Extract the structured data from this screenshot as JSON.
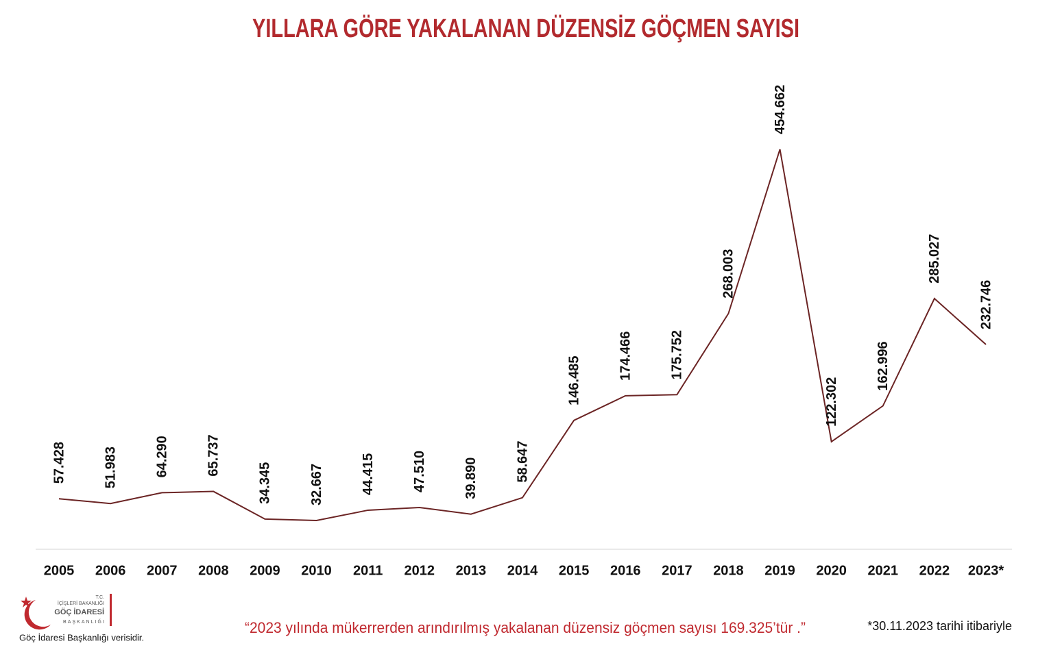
{
  "chart_data": {
    "type": "line",
    "title": "YILLARA GÖRE YAKALANAN DÜZENSİZ GÖÇMEN SAYISI",
    "categories": [
      "2005",
      "2006",
      "2007",
      "2008",
      "2009",
      "2010",
      "2011",
      "2012",
      "2013",
      "2014",
      "2015",
      "2016",
      "2017",
      "2018",
      "2019",
      "2020",
      "2021",
      "2022",
      "2023*"
    ],
    "values": [
      57428,
      51983,
      64290,
      65737,
      34345,
      32667,
      44415,
      47510,
      39890,
      58647,
      146485,
      174466,
      175752,
      268003,
      454662,
      122302,
      162996,
      285027,
      232746
    ],
    "value_labels": [
      "57.428",
      "51.983",
      "64.290",
      "65.737",
      "34.345",
      "32.667",
      "44.415",
      "47.510",
      "39.890",
      "58.647",
      "146.485",
      "174.466",
      "175.752",
      "268.003",
      "454.662",
      "122.302",
      "162.996",
      "285.027",
      "232.746"
    ],
    "color": "#6b2424"
  },
  "note": "“2023 yılında mükerrerden arındırılmış yakalanan düzensiz göçmen sayısı 169.325’tür .”",
  "footnote": "*30.11.2023 tarihi itibariyle",
  "source": "Göç İdaresi Başkanlığı verisidir.",
  "logo": {
    "line1": "T.C.",
    "line2": "İÇİŞLERİ BAKANLIĞI",
    "line3": "GÖÇ İDARESİ",
    "line4": "BAŞKANLIĞI"
  }
}
